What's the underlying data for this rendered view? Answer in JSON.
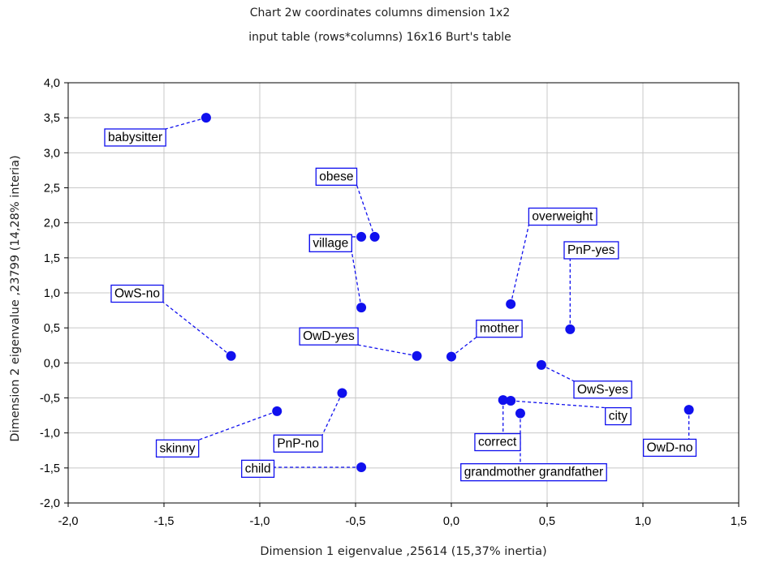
{
  "chart_data": {
    "type": "scatter",
    "title": "Chart 2w coordinates columns dimension 1x2",
    "subtitle": "input table (rows*columns) 16x16 Burt's table",
    "xlabel": "Dimension 1 eigenvalue  ,25614 (15,37% inertia)",
    "ylabel": "Dimension 2 eigenvalue  ,23799 (14,28% interia)",
    "xlim": [
      -2.0,
      1.5
    ],
    "ylim": [
      -2.0,
      4.0
    ],
    "x_ticks": [
      "-2,0",
      "-1,5",
      "-1,0",
      "-0,5",
      "0,0",
      "0,5",
      "1,0",
      "1,5"
    ],
    "y_ticks": [
      "4,0",
      "3,5",
      "3,0",
      "2,5",
      "2,0",
      "1,5",
      "1,0",
      "0,5",
      "0,0",
      "-0,5",
      "-1,0",
      "-1,5",
      "-2,0"
    ],
    "grid": true,
    "colors": {
      "point": "#1010ee",
      "label_border": "#1010ee",
      "leader": "#1010ee",
      "grid": "#c8c8c8"
    },
    "points": [
      {
        "label": "babysitter",
        "x": -1.28,
        "y": 3.5,
        "lx": -1.65,
        "ly": 3.23
      },
      {
        "label": "obese",
        "x": -0.4,
        "y": 1.8,
        "lx": -0.6,
        "ly": 2.67
      },
      {
        "label": "village",
        "x": -0.47,
        "y": 1.8,
        "lx": -0.63,
        "ly": 1.72
      },
      {
        "label": "overweight",
        "x": 0.31,
        "y": 0.84,
        "lx": 0.58,
        "ly": 2.1
      },
      {
        "label": "PnP-yes",
        "x": 0.62,
        "y": 0.48,
        "lx": 0.73,
        "ly": 1.62
      },
      {
        "label": "OwS-no",
        "x": -1.15,
        "y": 0.1,
        "lx": -1.64,
        "ly": 1.0
      },
      {
        "label": "village",
        "x": -0.47,
        "y": 0.79,
        "lx": -0.63,
        "ly": 1.72
      },
      {
        "label": "mother",
        "x": 0.0,
        "y": 0.09,
        "lx": 0.25,
        "ly": 0.5
      },
      {
        "label": "OwD-yes",
        "x": -0.18,
        "y": 0.1,
        "lx": -0.64,
        "ly": 0.39
      },
      {
        "label": "OwS-yes",
        "x": 0.47,
        "y": -0.03,
        "lx": 0.79,
        "ly": -0.37
      },
      {
        "label": "skinny",
        "x": -0.91,
        "y": -0.69,
        "lx": -1.43,
        "ly": -1.21
      },
      {
        "label": "PnP-no",
        "x": -0.57,
        "y": -0.43,
        "lx": -0.8,
        "ly": -1.14
      },
      {
        "label": "city",
        "x": 0.31,
        "y": -0.54,
        "lx": 0.87,
        "ly": -0.75
      },
      {
        "label": "correct",
        "x": 0.27,
        "y": -0.53,
        "lx": 0.24,
        "ly": -1.12
      },
      {
        "label": "grandmother grandfather",
        "x": 0.36,
        "y": -0.72,
        "lx": 0.43,
        "ly": -1.55
      },
      {
        "label": "OwD-no",
        "x": 1.24,
        "y": -0.67,
        "lx": 1.14,
        "ly": -1.2
      },
      {
        "label": "child",
        "x": -0.47,
        "y": -1.49,
        "lx": -1.01,
        "ly": -1.5
      }
    ]
  }
}
